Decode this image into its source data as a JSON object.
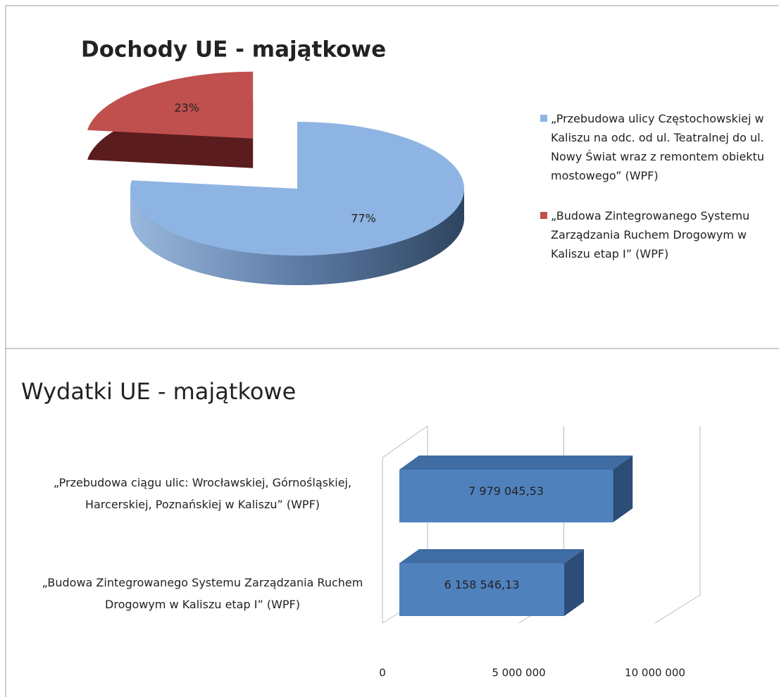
{
  "chart_data": [
    {
      "type": "pie",
      "title": "Dochody UE - majątkowe",
      "categories": [
        "„Przebudowa ulicy Częstochowskiej w Kaliszu na odc. od ul. Teatralnej do ul. Nowy Świat wraz z remontem obiektu mostowego” (WPF)",
        "„Budowa Zintegrowanego Systemu Zarządzania Ruchem Drogowym w Kaliszu etap I” (WPF)"
      ],
      "values": [
        77,
        23
      ],
      "value_labels": [
        "77%",
        "23%"
      ],
      "colors": [
        "#8eb4e3",
        "#c0504d"
      ],
      "legend": "right"
    },
    {
      "type": "hbar",
      "title": "Wydatki UE - majątkowe",
      "categories": [
        "„Przebudowa ciągu ulic: Wrocławskiej, Górnośląskiej, Harcerskiej, Poznańskiej w Kaliszu” (WPF)",
        "„Budowa Zintegrowanego Systemu Zarządzania Ruchem Drogowym w Kaliszu etap I” (WPF)"
      ],
      "values": [
        7979045.53,
        6158546.13
      ],
      "value_labels": [
        "7 979 045,53",
        "6 158 546,13"
      ],
      "color": "#4f81bd",
      "xlim": [
        0,
        10000000
      ],
      "xticks": [
        0,
        {
          "value": 5000000,
          "label": "5 000 000"
        },
        {
          "value": 10000000,
          "label": "10 000 000"
        }
      ],
      "grid": true
    }
  ]
}
